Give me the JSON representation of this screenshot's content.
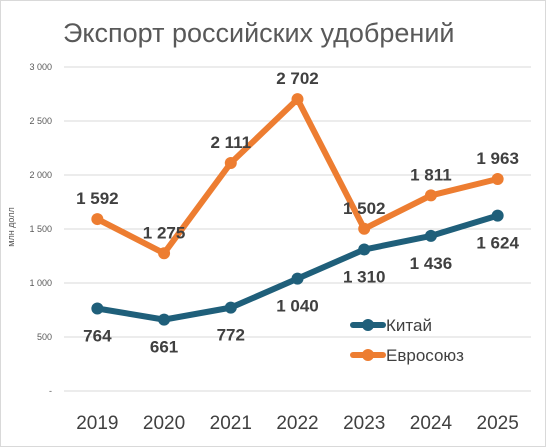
{
  "chart_data": {
    "type": "line",
    "title": "Экспорт российских удобрений",
    "xlabel": "",
    "ylabel": "млн долл",
    "categories": [
      "2019",
      "2020",
      "2021",
      "2022",
      "2023",
      "2024",
      "2025"
    ],
    "ylim": [
      0,
      3000
    ],
    "yticks": [
      0,
      500,
      1000,
      1500,
      2000,
      2500,
      3000
    ],
    "ytick_labels": [
      "-",
      "500",
      "1 000",
      "1 500",
      "2 000",
      "2 500",
      "3 000"
    ],
    "grid": true,
    "legend_position": "right",
    "series": [
      {
        "name": "Китай",
        "color": "#1f5f7a",
        "values": [
          764,
          661,
          772,
          1040,
          1310,
          1436,
          1624
        ],
        "labels": [
          "764",
          "661",
          "772",
          "1 040",
          "1 310",
          "1 436",
          "1 624"
        ]
      },
      {
        "name": "Евросоюз",
        "color": "#ed7d31",
        "values": [
          1592,
          1275,
          2111,
          2702,
          1502,
          1811,
          1963
        ],
        "labels": [
          "1 592",
          "1 275",
          "2 111",
          "2 702",
          "1 502",
          "1 811",
          "1 963"
        ]
      }
    ]
  }
}
